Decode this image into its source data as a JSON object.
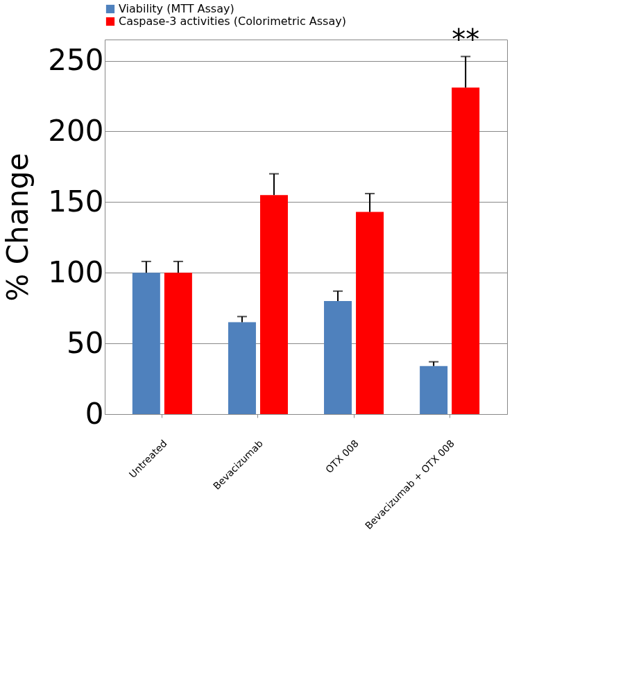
{
  "chart_data": {
    "type": "bar",
    "ylabel": "% Change",
    "categories": [
      "Untreated",
      "Bevacizumab",
      "OTX 008",
      "Bevacizumab + OTX 008"
    ],
    "series": [
      {
        "name": "Viability (MTT Assay)",
        "color": "#4f81bd",
        "values": [
          100,
          65,
          80,
          34
        ],
        "errors": [
          8,
          4,
          7,
          3
        ]
      },
      {
        "name": "Caspase-3 activities (Colorimetric  Assay)",
        "color": "#ff0000",
        "values": [
          100,
          155,
          143,
          231
        ],
        "errors": [
          8,
          15,
          13,
          22
        ]
      }
    ],
    "ylim": [
      0,
      265
    ],
    "yticks": [
      0,
      50,
      100,
      150,
      200,
      250
    ],
    "grid": "y",
    "legend": "top left",
    "annotations": [
      "**"
    ]
  }
}
